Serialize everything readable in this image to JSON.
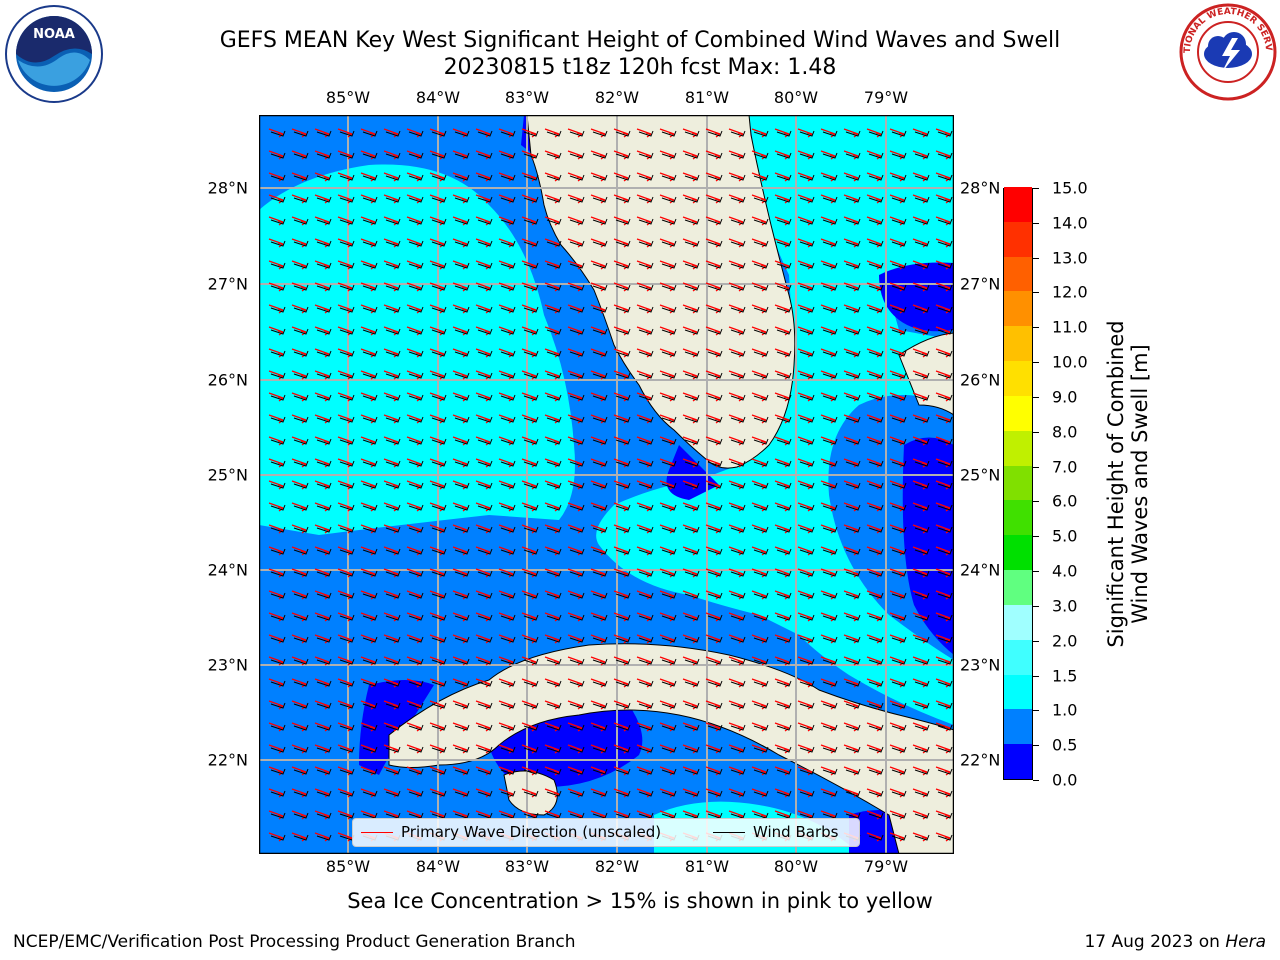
{
  "header": {
    "title_line1": "GEFS MEAN Key West Significant Height of Combined Wind Waves and Swell",
    "title_line2": "20230815 t18z 120h fcst   Max: 1.48"
  },
  "logos": {
    "left": {
      "icon": "noaa-logo",
      "text": "NOAA"
    },
    "right": {
      "icon": "national-weather-service-logo",
      "text": "NATIONAL WEATHER SERVICE"
    }
  },
  "map": {
    "lon_labels": [
      "85°W",
      "84°W",
      "83°W",
      "82°W",
      "81°W",
      "80°W",
      "79°W"
    ],
    "lat_labels": [
      "28°N",
      "27°N",
      "26°N",
      "25°N",
      "24°N",
      "23°N",
      "22°N"
    ],
    "colors": {
      "land": "#eeeedd",
      "gridline": "#b0b0b0",
      "wave_arrow": "#ff0000",
      "wind_barb": "#000000"
    }
  },
  "legend": {
    "wave_direction": "Primary Wave Direction (unscaled)",
    "wind_barbs": "Wind Barbs"
  },
  "colorbar": {
    "label_line1": "Significant Height of Combined",
    "label_line2": "Wind Waves and Swell [m]",
    "ticks": [
      "0.0",
      "0.5",
      "1.0",
      "1.5",
      "2.0",
      "3.0",
      "4.0",
      "5.0",
      "6.0",
      "7.0",
      "8.0",
      "9.0",
      "10.0",
      "11.0",
      "12.0",
      "13.0",
      "14.0",
      "15.0"
    ],
    "colors": [
      "#0000ff",
      "#0080ff",
      "#00ffff",
      "#40ffff",
      "#a0ffff",
      "#60ff80",
      "#00e000",
      "#40e000",
      "#80e000",
      "#c0f000",
      "#ffff00",
      "#ffe000",
      "#ffc000",
      "#ff9000",
      "#ff6000",
      "#ff3000",
      "#ff0000"
    ]
  },
  "notes": {
    "ice": "Sea Ice Concentration > 15% is shown in pink to yellow"
  },
  "footer": {
    "left": "NCEP/EMC/Verification Post Processing Product Generation Branch",
    "date": "17 Aug 2023 on",
    "host": "Hera"
  }
}
